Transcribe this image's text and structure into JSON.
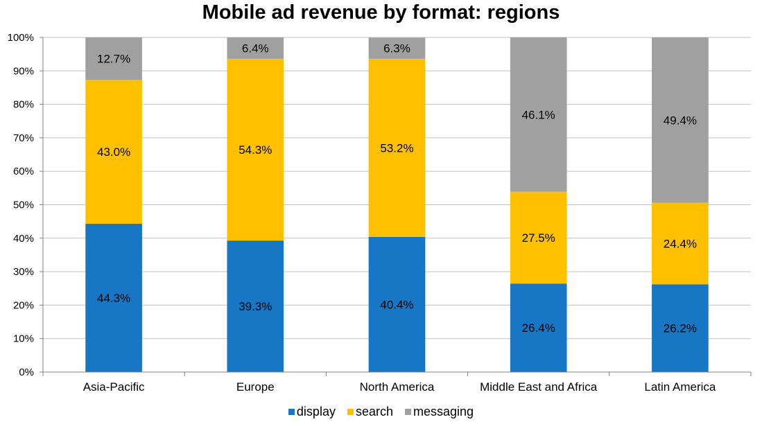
{
  "chart_data": {
    "type": "bar",
    "stacked": true,
    "title": "Mobile ad revenue by format: regions",
    "xlabel": "",
    "ylabel": "",
    "ylim": [
      0,
      100
    ],
    "yticks": [
      "0%",
      "10%",
      "20%",
      "30%",
      "40%",
      "50%",
      "60%",
      "70%",
      "80%",
      "90%",
      "100%"
    ],
    "grid": true,
    "legend_position": "bottom",
    "categories": [
      "Asia-Pacific",
      "Europe",
      "North America",
      "Middle East and Africa",
      "Latin America"
    ],
    "series": [
      {
        "name": "display",
        "color": "#1777C4",
        "values": [
          44.3,
          39.3,
          40.4,
          26.4,
          26.2
        ],
        "labels": [
          "44.3%",
          "39.3%",
          "40.4%",
          "26.4%",
          "26.2%"
        ]
      },
      {
        "name": "search",
        "color": "#FFC000",
        "values": [
          43.0,
          54.3,
          53.2,
          27.5,
          24.4
        ],
        "labels": [
          "43.0%",
          "54.3%",
          "53.2%",
          "27.5%",
          "24.4%"
        ]
      },
      {
        "name": "messaging",
        "color": "#A0A0A0",
        "values": [
          12.7,
          6.4,
          6.3,
          46.1,
          49.4
        ],
        "labels": [
          "12.7%",
          "6.4%",
          "6.3%",
          "46.1%",
          "49.4%"
        ]
      }
    ]
  }
}
